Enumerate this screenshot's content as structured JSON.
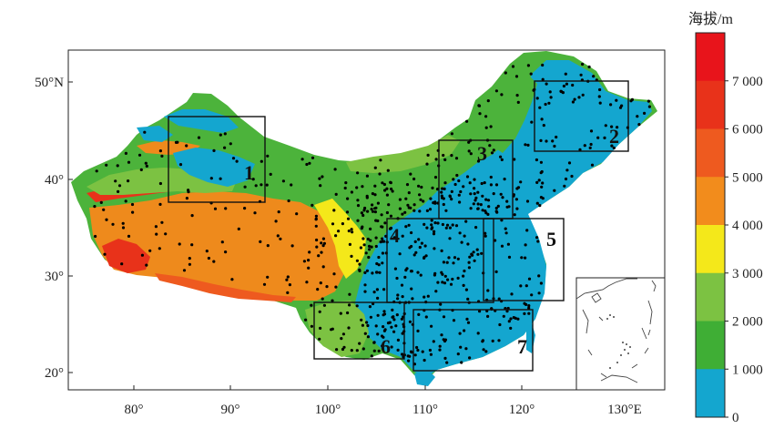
{
  "map": {
    "lat_ticks": [
      "50°N",
      "40°",
      "30°",
      "20°"
    ],
    "lon_ticks": [
      "80°",
      "90°",
      "100°",
      "110°",
      "120°",
      "130°E"
    ],
    "regions": [
      "1",
      "2",
      "3",
      "4",
      "5",
      "6",
      "7"
    ]
  },
  "legend": {
    "title": "海拔/m",
    "labels": [
      "7 000",
      "6 000",
      "5 000",
      "4 000",
      "3 000",
      "2 000",
      "1 000",
      "0"
    ],
    "colors": [
      "#e8141b",
      "#e8321a",
      "#ee5a1f",
      "#f28c1c",
      "#f4e81a",
      "#7cc242",
      "#3fae35",
      "#14a6cf"
    ]
  }
}
